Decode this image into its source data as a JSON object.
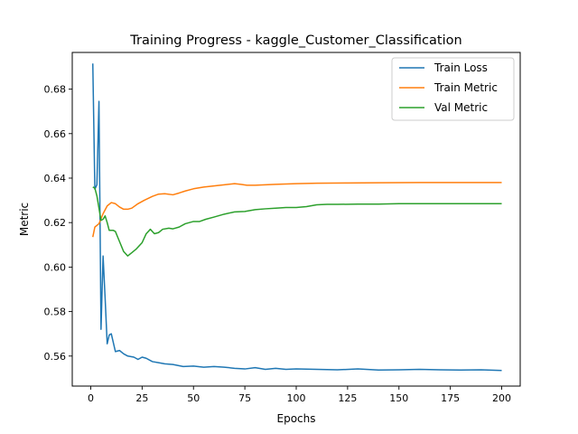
{
  "chart_data": {
    "type": "line",
    "title": "Training Progress - kaggle_Customer_Classification",
    "xlabel": "Epochs",
    "ylabel": "Metric",
    "xlim": [
      -9,
      209
    ],
    "ylim": [
      0.5465,
      0.6965
    ],
    "xticks": [
      0,
      25,
      50,
      75,
      100,
      125,
      150,
      175,
      200
    ],
    "yticks": [
      0.56,
      0.58,
      0.6,
      0.62,
      0.64,
      0.66,
      0.68
    ],
    "ytick_labels": [
      "0.56",
      "0.58",
      "0.60",
      "0.62",
      "0.64",
      "0.66",
      "0.68"
    ],
    "grid": false,
    "legend_position": "top-right",
    "series": [
      {
        "name": "Train Loss",
        "color": "#1f77b4",
        "points": [
          [
            1,
            0.6915
          ],
          [
            2,
            0.635
          ],
          [
            3,
            0.637
          ],
          [
            4,
            0.6745
          ],
          [
            5,
            0.572
          ],
          [
            6,
            0.605
          ],
          [
            7,
            0.586
          ],
          [
            8,
            0.5655
          ],
          [
            9,
            0.5695
          ],
          [
            10,
            0.57
          ],
          [
            12,
            0.562
          ],
          [
            14,
            0.5625
          ],
          [
            16,
            0.561
          ],
          [
            18,
            0.56
          ],
          [
            21,
            0.5595
          ],
          [
            23,
            0.5585
          ],
          [
            25,
            0.5595
          ],
          [
            27,
            0.559
          ],
          [
            30,
            0.5575
          ],
          [
            33,
            0.557
          ],
          [
            36,
            0.5565
          ],
          [
            40,
            0.5562
          ],
          [
            45,
            0.5553
          ],
          [
            50,
            0.5555
          ],
          [
            55,
            0.555
          ],
          [
            60,
            0.5553
          ],
          [
            65,
            0.555
          ],
          [
            70,
            0.5545
          ],
          [
            75,
            0.5542
          ],
          [
            80,
            0.5548
          ],
          [
            85,
            0.554
          ],
          [
            90,
            0.5545
          ],
          [
            95,
            0.554
          ],
          [
            100,
            0.5542
          ],
          [
            110,
            0.554
          ],
          [
            120,
            0.5538
          ],
          [
            130,
            0.5542
          ],
          [
            140,
            0.5537
          ],
          [
            150,
            0.5538
          ],
          [
            160,
            0.554
          ],
          [
            170,
            0.5538
          ],
          [
            180,
            0.5537
          ],
          [
            190,
            0.5538
          ],
          [
            200,
            0.5535
          ]
        ]
      },
      {
        "name": "Train Metric",
        "color": "#ff7f0e",
        "points": [
          [
            1,
            0.6135
          ],
          [
            2,
            0.618
          ],
          [
            4,
            0.6195
          ],
          [
            6,
            0.624
          ],
          [
            8,
            0.6275
          ],
          [
            10,
            0.629
          ],
          [
            12,
            0.6285
          ],
          [
            14,
            0.627
          ],
          [
            16,
            0.626
          ],
          [
            18,
            0.626
          ],
          [
            20,
            0.6265
          ],
          [
            23,
            0.6285
          ],
          [
            26,
            0.63
          ],
          [
            30,
            0.6318
          ],
          [
            33,
            0.6328
          ],
          [
            36,
            0.633
          ],
          [
            40,
            0.6325
          ],
          [
            43,
            0.6333
          ],
          [
            46,
            0.6342
          ],
          [
            50,
            0.6352
          ],
          [
            55,
            0.636
          ],
          [
            60,
            0.6365
          ],
          [
            65,
            0.637
          ],
          [
            70,
            0.6375
          ],
          [
            73,
            0.6372
          ],
          [
            76,
            0.6368
          ],
          [
            80,
            0.6368
          ],
          [
            90,
            0.6372
          ],
          [
            100,
            0.6375
          ],
          [
            110,
            0.6377
          ],
          [
            125,
            0.6378
          ],
          [
            140,
            0.6379
          ],
          [
            160,
            0.638
          ],
          [
            180,
            0.638
          ],
          [
            200,
            0.638
          ]
        ]
      },
      {
        "name": "Val Metric",
        "color": "#2ca02c",
        "points": [
          [
            1,
            0.636
          ],
          [
            2,
            0.6355
          ],
          [
            3,
            0.632
          ],
          [
            5,
            0.621
          ],
          [
            6,
            0.6215
          ],
          [
            7,
            0.623
          ],
          [
            8,
            0.62
          ],
          [
            9,
            0.6165
          ],
          [
            11,
            0.6165
          ],
          [
            12,
            0.616
          ],
          [
            14,
            0.6115
          ],
          [
            16,
            0.607
          ],
          [
            18,
            0.605
          ],
          [
            20,
            0.6065
          ],
          [
            22,
            0.608
          ],
          [
            25,
            0.611
          ],
          [
            27,
            0.615
          ],
          [
            29,
            0.617
          ],
          [
            31,
            0.615
          ],
          [
            33,
            0.6155
          ],
          [
            35,
            0.617
          ],
          [
            38,
            0.6175
          ],
          [
            40,
            0.6172
          ],
          [
            43,
            0.618
          ],
          [
            46,
            0.6195
          ],
          [
            50,
            0.6205
          ],
          [
            53,
            0.6205
          ],
          [
            56,
            0.6215
          ],
          [
            60,
            0.6225
          ],
          [
            65,
            0.6238
          ],
          [
            70,
            0.6248
          ],
          [
            75,
            0.625
          ],
          [
            80,
            0.6258
          ],
          [
            85,
            0.6262
          ],
          [
            90,
            0.6265
          ],
          [
            95,
            0.6268
          ],
          [
            100,
            0.6268
          ],
          [
            105,
            0.6272
          ],
          [
            110,
            0.628
          ],
          [
            115,
            0.6282
          ],
          [
            120,
            0.6282
          ],
          [
            130,
            0.6283
          ],
          [
            140,
            0.6283
          ],
          [
            150,
            0.6285
          ],
          [
            160,
            0.6285
          ],
          [
            175,
            0.6285
          ],
          [
            190,
            0.6285
          ],
          [
            200,
            0.6285
          ]
        ]
      }
    ]
  }
}
